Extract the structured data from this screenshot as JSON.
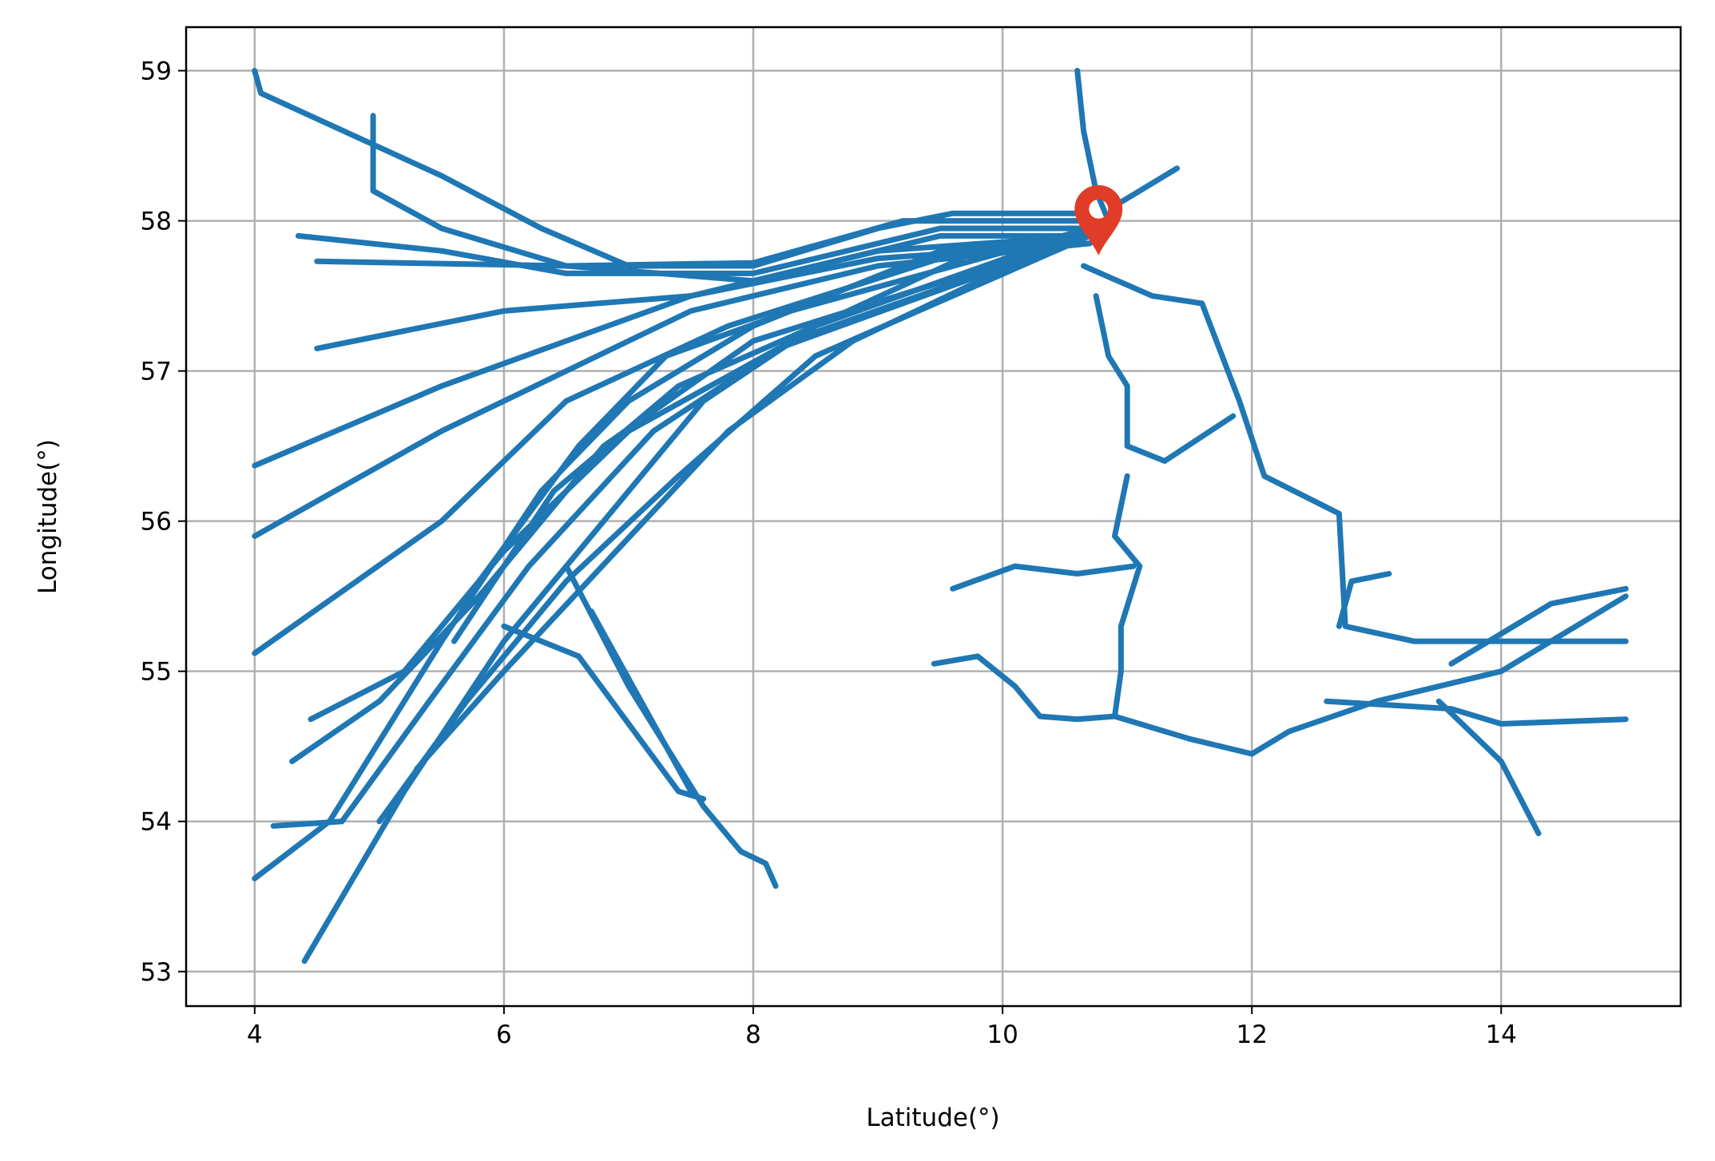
{
  "chart_data": {
    "type": "line",
    "xlabel": "Latitude(°)",
    "ylabel": "Longitude(°)",
    "xlim": [
      3.45,
      15.44
    ],
    "ylim": [
      52.77,
      59.29
    ],
    "xticks": [
      4,
      6,
      8,
      10,
      12,
      14
    ],
    "yticks": [
      53,
      54,
      55,
      56,
      57,
      58,
      59
    ],
    "grid": true,
    "color": "#1f77b4",
    "series": [
      {
        "x": [
          4.0,
          4.05,
          5.5,
          6.3,
          7.0,
          8.0,
          9.0,
          9.6,
          10.6
        ],
        "values": [
          59.0,
          58.85,
          58.3,
          57.95,
          57.7,
          57.7,
          57.95,
          58.05,
          58.05
        ]
      },
      {
        "x": [
          4.95,
          4.95,
          5.5,
          6.5,
          8.0,
          9.2,
          10.6
        ],
        "values": [
          58.7,
          58.2,
          57.95,
          57.7,
          57.72,
          58.0,
          58.0
        ]
      },
      {
        "x": [
          4.35,
          5.5,
          6.5,
          8.0,
          9.5,
          10.7
        ],
        "values": [
          57.9,
          57.8,
          57.65,
          57.65,
          57.95,
          57.95
        ]
      },
      {
        "x": [
          4.5,
          6.5,
          8.0,
          9.5,
          10.7
        ],
        "values": [
          57.73,
          57.7,
          57.6,
          57.9,
          57.9
        ]
      },
      {
        "x": [
          4.5,
          6.0,
          7.5,
          9.0,
          10.7
        ],
        "values": [
          57.15,
          57.4,
          57.5,
          57.75,
          57.85
        ]
      },
      {
        "x": [
          4.0,
          5.5,
          6.5,
          7.5,
          9.0,
          10.7
        ],
        "values": [
          56.37,
          56.9,
          57.2,
          57.5,
          57.8,
          57.9
        ]
      },
      {
        "x": [
          4.0,
          5.5,
          6.5,
          7.5,
          9.0,
          10.7
        ],
        "values": [
          55.9,
          56.6,
          57.0,
          57.4,
          57.7,
          57.85
        ]
      },
      {
        "x": [
          4.0,
          5.5,
          6.5,
          7.8,
          9.5,
          10.7
        ],
        "values": [
          55.12,
          56.0,
          56.8,
          57.3,
          57.75,
          57.85
        ]
      },
      {
        "x": [
          4.0,
          4.6,
          5.5,
          6.3,
          7.0,
          8.0,
          9.5,
          10.7
        ],
        "values": [
          53.62,
          54.0,
          55.2,
          56.2,
          56.8,
          57.3,
          57.8,
          57.9
        ]
      },
      {
        "x": [
          4.4,
          5.2,
          6.0,
          6.8,
          7.6,
          8.5,
          9.8,
          10.7
        ],
        "values": [
          53.07,
          54.2,
          55.2,
          56.0,
          56.8,
          57.3,
          57.8,
          57.9
        ]
      },
      {
        "x": [
          4.15,
          4.7,
          5.4,
          6.2,
          7.2,
          8.3,
          10.7
        ],
        "values": [
          53.97,
          54.0,
          54.8,
          55.7,
          56.6,
          57.2,
          57.9
        ]
      },
      {
        "x": [
          4.3,
          5.0,
          5.8,
          6.8,
          8.0,
          10.7
        ],
        "values": [
          54.4,
          54.8,
          55.5,
          56.5,
          57.2,
          57.9
        ]
      },
      {
        "x": [
          4.45,
          5.2,
          6.0,
          7.0,
          8.2,
          10.7
        ],
        "values": [
          54.68,
          55.0,
          55.8,
          56.6,
          57.15,
          57.9
        ]
      },
      {
        "x": [
          5.0,
          5.7,
          6.5,
          7.4,
          8.5,
          10.7
        ],
        "values": [
          54.0,
          54.8,
          55.6,
          56.3,
          57.1,
          57.9
        ]
      },
      {
        "x": [
          5.3,
          6.0,
          6.9,
          7.8,
          8.8,
          10.7
        ],
        "values": [
          54.35,
          55.0,
          55.8,
          56.6,
          57.2,
          57.95
        ]
      },
      {
        "x": [
          5.6,
          6.4,
          7.4,
          8.5,
          10.7
        ],
        "values": [
          55.2,
          56.2,
          56.9,
          57.3,
          57.95
        ]
      },
      {
        "x": [
          5.8,
          6.6,
          7.3,
          8.3,
          10.7
        ],
        "values": [
          55.6,
          56.5,
          57.1,
          57.4,
          57.95
        ]
      },
      {
        "x": [
          6.0,
          6.6,
          7.4,
          7.6
        ],
        "values": [
          55.3,
          55.1,
          54.2,
          54.15
        ]
      },
      {
        "x": [
          6.5,
          7.0,
          7.6,
          7.9,
          8.1,
          8.18
        ],
        "values": [
          55.7,
          54.9,
          54.1,
          53.8,
          53.72,
          53.57
        ]
      },
      {
        "x": [
          6.7,
          7.5
        ],
        "values": [
          55.4,
          54.2
        ]
      },
      {
        "x": [
          10.6,
          10.65,
          10.75,
          10.85
        ],
        "values": [
          59.0,
          58.6,
          58.2,
          58.0
        ]
      },
      {
        "x": [
          10.9,
          11.1,
          11.4
        ],
        "values": [
          58.1,
          58.2,
          58.35
        ]
      },
      {
        "x": [
          10.65,
          11.2,
          11.6,
          11.9,
          12.1,
          12.7,
          12.75,
          13.3,
          15.0
        ],
        "values": [
          57.7,
          57.5,
          57.45,
          56.8,
          56.3,
          56.05,
          55.3,
          55.2,
          55.2
        ]
      },
      {
        "x": [
          10.75,
          10.85,
          11.0,
          11.0,
          11.3,
          11.85
        ],
        "values": [
          57.5,
          57.1,
          56.9,
          56.5,
          56.4,
          56.7
        ]
      },
      {
        "x": [
          11.0,
          10.9,
          11.1,
          10.95,
          10.95,
          10.9,
          11.5,
          12.0,
          12.3,
          13.0,
          14.0,
          15.0
        ],
        "values": [
          56.3,
          55.9,
          55.7,
          55.3,
          55.0,
          54.7,
          54.55,
          54.45,
          54.6,
          54.8,
          55.0,
          55.5
        ]
      },
      {
        "x": [
          9.45,
          9.8,
          10.1,
          10.3,
          10.6,
          10.9
        ],
        "values": [
          55.05,
          55.1,
          54.9,
          54.7,
          54.68,
          54.7
        ]
      },
      {
        "x": [
          9.6,
          10.1,
          10.6,
          11.05
        ],
        "values": [
          55.55,
          55.7,
          55.65,
          55.7
        ]
      },
      {
        "x": [
          12.6,
          13.6,
          14.0,
          15.0
        ],
        "values": [
          54.8,
          54.75,
          54.65,
          54.68
        ]
      },
      {
        "x": [
          13.5,
          14.0,
          14.3
        ],
        "values": [
          54.8,
          54.4,
          53.92
        ]
      },
      {
        "x": [
          12.7,
          12.8,
          13.1
        ],
        "values": [
          55.3,
          55.6,
          55.65
        ]
      },
      {
        "x": [
          13.6,
          14.4,
          15.0
        ],
        "values": [
          55.05,
          55.45,
          55.55
        ]
      }
    ],
    "marker": {
      "x": 10.77,
      "y": 57.77,
      "color": "#e03c28"
    }
  }
}
